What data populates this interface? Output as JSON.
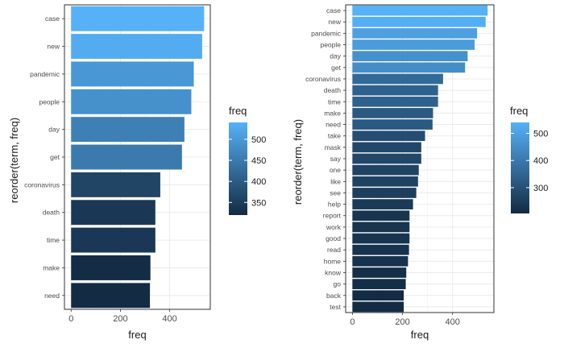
{
  "chart_data": [
    {
      "type": "bar",
      "orientation": "horizontal",
      "categories": [
        "case",
        "new",
        "pandemic",
        "people",
        "day",
        "get",
        "coronavirus",
        "death",
        "time",
        "make",
        "need"
      ],
      "values": [
        540,
        532,
        498,
        488,
        460,
        450,
        362,
        342,
        342,
        322,
        320
      ],
      "xlabel": "freq",
      "ylabel": "reorder(term, freq)",
      "xticks": [
        0,
        200,
        400
      ],
      "xlim": [
        -27,
        565
      ],
      "grid": true,
      "legend": {
        "title": "freq",
        "placement": "right",
        "ticks": [
          350,
          400,
          450,
          500
        ],
        "range": [
          320,
          540
        ],
        "color_low": "#132b43",
        "color_high": "#56b1f7"
      }
    },
    {
      "type": "bar",
      "orientation": "horizontal",
      "categories": [
        "case",
        "new",
        "pandemic",
        "people",
        "day",
        "get",
        "coronavirus",
        "death",
        "time",
        "make",
        "need",
        "take",
        "mask",
        "say",
        "one",
        "like",
        "see",
        "help",
        "report",
        "work",
        "good",
        "read",
        "home",
        "know",
        "go",
        "back",
        "test"
      ],
      "values": [
        540,
        532,
        498,
        488,
        460,
        450,
        362,
        342,
        342,
        322,
        320,
        290,
        275,
        275,
        265,
        262,
        255,
        242,
        228,
        228,
        228,
        226,
        222,
        215,
        213,
        205,
        205
      ],
      "xlabel": "freq",
      "ylabel": "reorder(term, freq)",
      "xticks": [
        0,
        200,
        400
      ],
      "xlim": [
        -27,
        565
      ],
      "grid": true,
      "legend": {
        "title": "freq",
        "placement": "right",
        "ticks": [
          300,
          400,
          500
        ],
        "range": [
          205,
          540
        ],
        "color_low": "#132b43",
        "color_high": "#56b1f7"
      }
    }
  ]
}
